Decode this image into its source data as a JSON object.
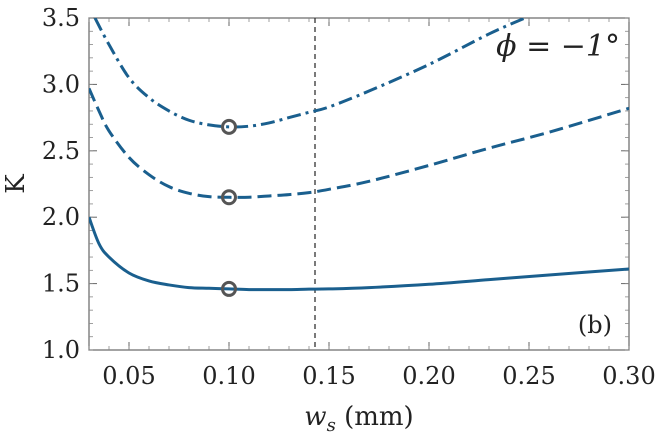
{
  "chart_data": {
    "type": "line",
    "title": "",
    "xlabel": "w",
    "xlabel_sub": "s",
    "xlabel_unit": " (mm)",
    "ylabel": "K",
    "xlim": [
      0.03,
      0.3
    ],
    "ylim": [
      1.0,
      3.5
    ],
    "xticks": [
      0.05,
      0.1,
      0.15,
      0.2,
      0.25,
      0.3
    ],
    "xtick_labels": [
      "0.05",
      "0.10",
      "0.15",
      "0.20",
      "0.25",
      "0.30"
    ],
    "yticks": [
      1.0,
      1.5,
      2.0,
      2.5,
      3.0,
      3.5
    ],
    "ytick_labels": [
      "1.0",
      "1.5",
      "2.0",
      "2.5",
      "3.0",
      "3.5"
    ],
    "vline_x": 0.143,
    "annotation": "ϕ = −1°",
    "panel_label": "(b)",
    "colors": {
      "line": "#1a5f8e",
      "marker": "#555555",
      "axis": "#666666"
    },
    "series": [
      {
        "name": "solid",
        "style": "solid",
        "x": [
          0.03,
          0.035,
          0.04,
          0.05,
          0.06,
          0.07,
          0.08,
          0.09,
          0.1,
          0.11,
          0.12,
          0.13,
          0.14,
          0.15,
          0.17,
          0.2,
          0.23,
          0.26,
          0.3
        ],
        "y": [
          2.0,
          1.8,
          1.7,
          1.58,
          1.52,
          1.49,
          1.47,
          1.465,
          1.46,
          1.455,
          1.455,
          1.455,
          1.458,
          1.46,
          1.47,
          1.495,
          1.53,
          1.565,
          1.61
        ]
      },
      {
        "name": "dashed",
        "style": "dashed",
        "x": [
          0.03,
          0.035,
          0.04,
          0.05,
          0.06,
          0.07,
          0.08,
          0.09,
          0.1,
          0.11,
          0.12,
          0.13,
          0.14,
          0.15,
          0.17,
          0.2,
          0.23,
          0.26,
          0.3
        ],
        "y": [
          2.97,
          2.8,
          2.65,
          2.45,
          2.32,
          2.23,
          2.18,
          2.155,
          2.15,
          2.15,
          2.16,
          2.17,
          2.185,
          2.21,
          2.27,
          2.39,
          2.52,
          2.64,
          2.82
        ]
      },
      {
        "name": "dash-dot",
        "style": "dashdot",
        "x": [
          0.033,
          0.04,
          0.05,
          0.06,
          0.07,
          0.08,
          0.09,
          0.1,
          0.11,
          0.12,
          0.13,
          0.14,
          0.15,
          0.17,
          0.2,
          0.23,
          0.248
        ],
        "y": [
          3.5,
          3.3,
          3.05,
          2.9,
          2.8,
          2.73,
          2.695,
          2.68,
          2.685,
          2.71,
          2.75,
          2.79,
          2.83,
          2.95,
          3.15,
          3.38,
          3.5
        ]
      }
    ],
    "markers": [
      {
        "x": 0.1,
        "y": 1.46
      },
      {
        "x": 0.1,
        "y": 2.15
      },
      {
        "x": 0.1,
        "y": 2.68
      }
    ]
  }
}
